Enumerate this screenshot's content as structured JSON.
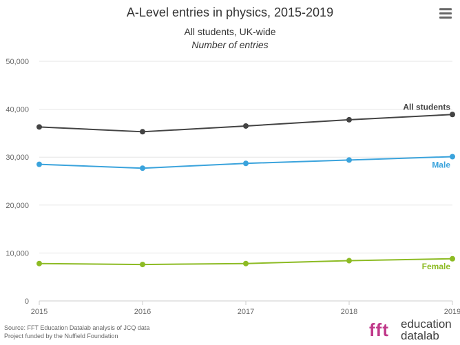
{
  "chart_data": {
    "type": "line",
    "title": "A-Level entries in physics, 2015-2019",
    "subtitle_line1": "All students, UK-wide",
    "subtitle_line2": "Number of entries",
    "x": [
      "2015",
      "2016",
      "2017",
      "2018",
      "2019"
    ],
    "ylim": [
      0,
      50000
    ],
    "yticks": [
      "0",
      "10,000",
      "20,000",
      "30,000",
      "40,000",
      "50,000"
    ],
    "ytick_values": [
      0,
      10000,
      20000,
      30000,
      40000,
      50000
    ],
    "grid": true,
    "series": [
      {
        "name": "All students",
        "color": "#434343",
        "values": [
          36300,
          35300,
          36500,
          37800,
          38900
        ]
      },
      {
        "name": "Male",
        "color": "#3aa3dc",
        "values": [
          28500,
          27700,
          28700,
          29400,
          30100
        ]
      },
      {
        "name": "Female",
        "color": "#8dbb24",
        "values": [
          7800,
          7600,
          7800,
          8400,
          8800
        ]
      }
    ]
  },
  "footer": {
    "source": "Source: FFT Education Datalab analysis of JCQ data",
    "funding": "Project funded by the Nuffield Foundation"
  },
  "logo": {
    "mark": "fft",
    "line1": "education",
    "line2": "datalab"
  },
  "menu": {
    "icon": "hamburger-menu-icon"
  }
}
